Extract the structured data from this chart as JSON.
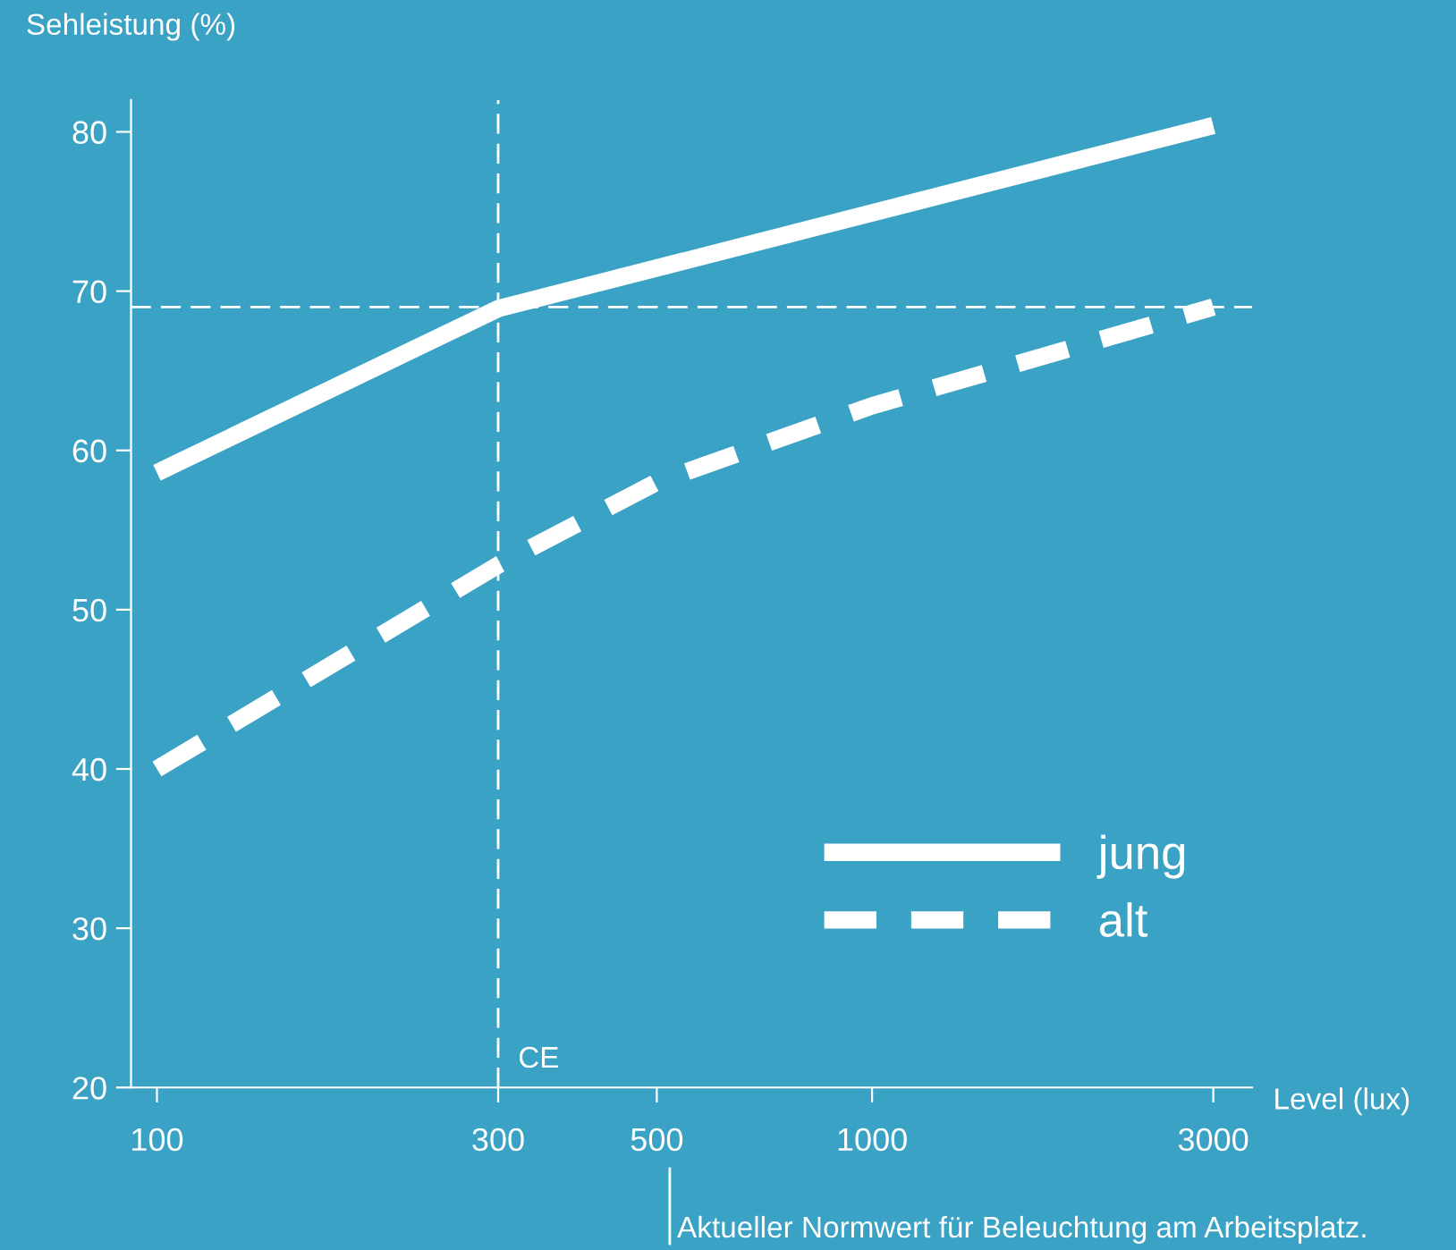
{
  "chart_data": {
    "type": "line",
    "ylabel": "Sehleistung (%)",
    "xlabel": "Level (lux)",
    "log": "x",
    "xlim": [
      92,
      3400
    ],
    "xticks": [
      100,
      300,
      500,
      1000,
      3000
    ],
    "ylim": [
      20,
      82
    ],
    "yticks": [
      20,
      30,
      40,
      50,
      60,
      70,
      80
    ],
    "grid": false,
    "legend": "bottom right",
    "marker": "none",
    "series": [
      {
        "name": "jung",
        "color": "#ffffff",
        "line_style": "solid",
        "x": [
          100,
          300,
          3000
        ],
        "values": [
          58.6,
          68.9,
          80.4
        ]
      },
      {
        "name": "alt",
        "color": "#ffffff",
        "line_style": "dashed",
        "x": [
          100,
          300,
          500,
          1000,
          3000
        ],
        "values": [
          40,
          52.8,
          58,
          62.8,
          69
        ]
      }
    ],
    "ref_lines": [
      {
        "axis": "x",
        "value": 300,
        "label": "CE",
        "color": "#ffffff",
        "line_style": "dashed"
      },
      {
        "axis": "y",
        "value": 69,
        "label": null,
        "color": "#ffffff",
        "line_style": "dashed"
      }
    ],
    "annotations": [
      "Aktueller Normwert für Beleuchtung am Arbeitsplatz."
    ]
  }
}
